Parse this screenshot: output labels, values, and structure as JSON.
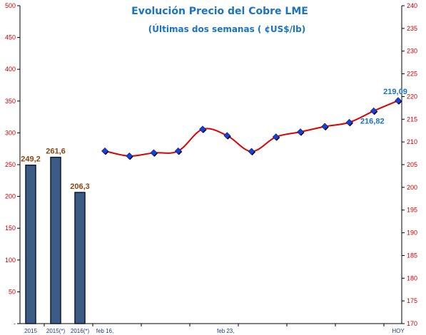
{
  "title": "Evolución Precio del Cobre LME",
  "subtitle": "(Últimas dos semanas ( ¢US$/lb)",
  "colors": {
    "title": "#1a73c4",
    "bar_fill": "#3c5b85",
    "bar_edge": "#0d1a33",
    "line": "#dd0000",
    "marker": "#1a3fd9",
    "axis_text": "#cc0000",
    "bar_label": "#8b4513",
    "point_label": "#1a73c4"
  },
  "chart_data": [
    {
      "type": "bar",
      "axis": "left",
      "categories": [
        "2015",
        "2015(*)",
        "2016(*)"
      ],
      "values": [
        249.2,
        261.6,
        206.3
      ],
      "data_labels": [
        "249,2",
        "261,6",
        "206,3"
      ],
      "ylim": [
        0,
        500
      ],
      "yticks": [
        "-",
        "50",
        "100",
        "150",
        "200",
        "250",
        "300",
        "350",
        "400",
        "450",
        "500"
      ],
      "grid": false
    },
    {
      "type": "line",
      "axis": "right",
      "smooth": true,
      "x_tick_labels": [
        "feb 16,",
        "feb 23,",
        "HOY"
      ],
      "values": [
        208.0,
        206.9,
        207.6,
        208.0,
        212.8,
        211.4,
        207.9,
        211.1,
        212.2,
        213.4,
        214.3,
        216.82,
        219.09
      ],
      "data_labels": [
        {
          "index": 11,
          "text": "216,82"
        },
        {
          "index": 12,
          "text": "219,09"
        }
      ],
      "ylim": [
        170,
        240
      ],
      "yticks": [
        "170",
        "175",
        "180",
        "185",
        "190",
        "195",
        "200",
        "205",
        "210",
        "215",
        "220",
        "225",
        "230",
        "235",
        "240"
      ],
      "grid": false
    }
  ]
}
